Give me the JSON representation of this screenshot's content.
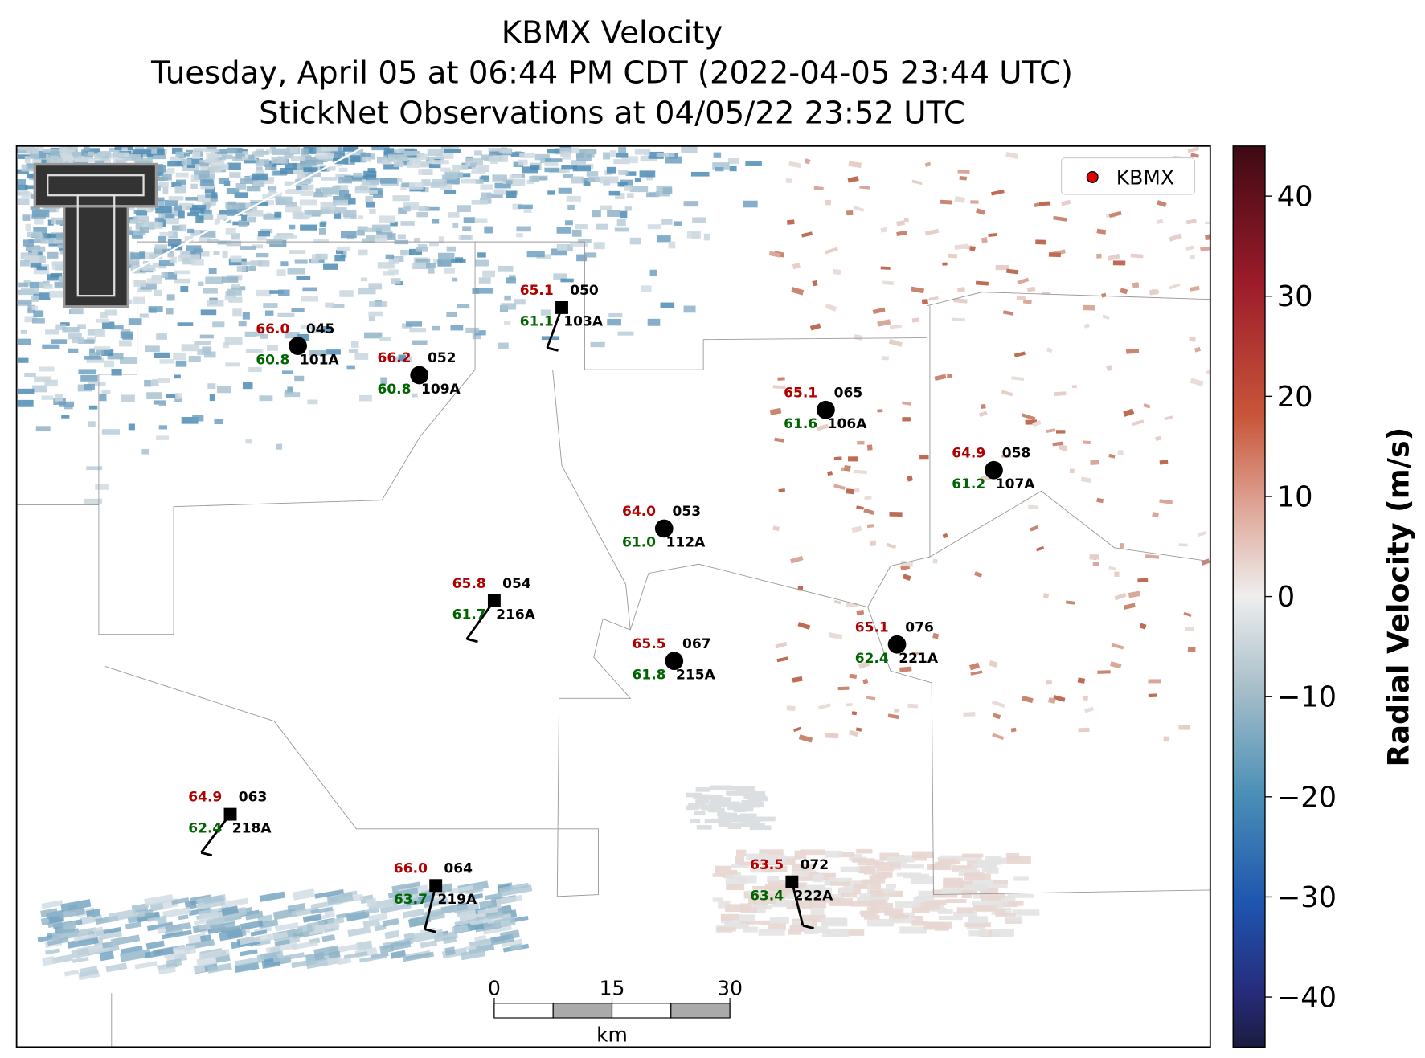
{
  "title_lines": [
    "KBMX Velocity",
    "Tuesday, April 05 at 06:44 PM CDT (2022-04-05 23:44 UTC)",
    "StickNet Observations at 04/05/22 23:52 UTC"
  ],
  "legend": {
    "label": "KBMX",
    "color": "#e00000"
  },
  "colorbar": {
    "label": "Radial Velocity (m/s)",
    "lim": [
      -45,
      45
    ],
    "ticks": [
      40,
      30,
      20,
      10,
      0,
      {
        "value": -10,
        "label": "−10"
      },
      {
        "value": -20,
        "label": "−20"
      },
      {
        "value": -30,
        "label": "−30"
      },
      {
        "value": -40,
        "label": "−40"
      }
    ]
  },
  "scale_bar": {
    "ticks": [
      0,
      15,
      30
    ],
    "unit": "km"
  },
  "stations": [
    {
      "number": "045",
      "name": "101A",
      "temperature": 66.0,
      "dewpoint": 60.8
    },
    {
      "number": "052",
      "name": "109A",
      "temperature": 66.2,
      "dewpoint": 60.8
    },
    {
      "number": "050",
      "name": "103A",
      "temperature": 65.1,
      "dewpoint": 61.1
    },
    {
      "number": "065",
      "name": "106A",
      "temperature": 65.1,
      "dewpoint": 61.6
    },
    {
      "number": "058",
      "name": "107A",
      "temperature": 64.9,
      "dewpoint": 61.2
    },
    {
      "number": "053",
      "name": "112A",
      "temperature": 64.0,
      "dewpoint": 61.0
    },
    {
      "number": "054",
      "name": "216A",
      "temperature": 65.8,
      "dewpoint": 61.7
    },
    {
      "number": "076",
      "name": "221A",
      "temperature": 65.1,
      "dewpoint": 62.4
    },
    {
      "number": "067",
      "name": "215A",
      "temperature": 65.5,
      "dewpoint": 61.8
    },
    {
      "number": "063",
      "name": "218A",
      "temperature": 64.9,
      "dewpoint": 62.4
    },
    {
      "number": "064",
      "name": "219A",
      "temperature": 66.0,
      "dewpoint": 63.7
    },
    {
      "number": "072",
      "name": "222A",
      "temperature": 63.5,
      "dewpoint": 63.4
    }
  ]
}
